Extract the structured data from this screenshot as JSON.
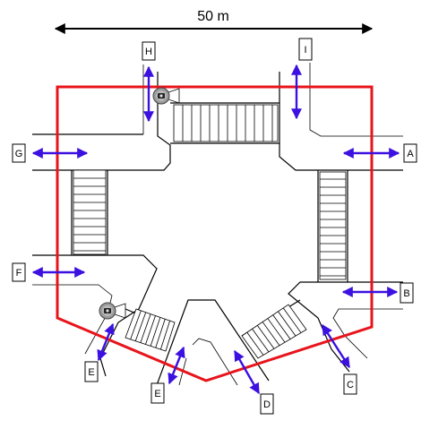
{
  "scale_bar": {
    "label": "50 m"
  },
  "labels": {
    "A": "A",
    "B": "B",
    "C": "C",
    "D": "D",
    "E_left": "E",
    "E_bottom": "E",
    "F": "F",
    "G": "G",
    "H": "H",
    "I": "I"
  },
  "colors": {
    "boundary": "#e8141c",
    "arrow": "#3b10e0",
    "road": "#000000"
  },
  "icons": [
    "camera-icon",
    "camera-icon"
  ]
}
